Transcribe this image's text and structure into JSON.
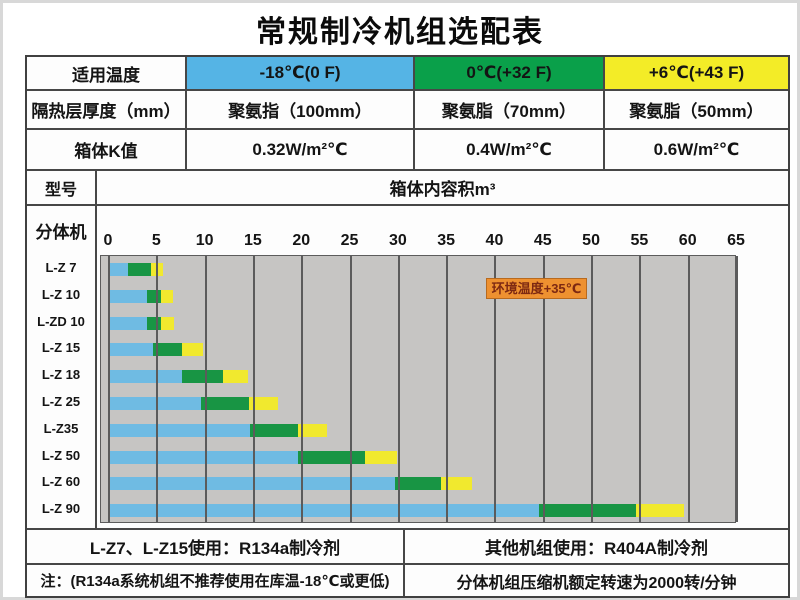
{
  "title": "常规制冷机组选配表",
  "rows": {
    "temperature": {
      "label": "适用温度",
      "cells": [
        {
          "text": "-18℃(0 F)",
          "bg": "#55b4e5"
        },
        {
          "text": "0℃(+32 F)",
          "bg": "#0aa04a"
        },
        {
          "text": "+6℃(+43 F)",
          "bg": "#f3ec27"
        }
      ]
    },
    "insulation": {
      "label": "隔热层厚度（mm）",
      "cells": [
        {
          "text": "聚氨指（100mm）"
        },
        {
          "text": "聚氨脂（70mm）"
        },
        {
          "text": "聚氨脂（50mm）"
        }
      ]
    },
    "k_value": {
      "label": "箱体K值",
      "cells": [
        {
          "text": "0.32W/m²℃"
        },
        {
          "text": "0.4W/m²℃"
        },
        {
          "text": "0.6W/m²℃"
        }
      ]
    },
    "model": {
      "label": "型号",
      "value": "箱体内容积m³"
    },
    "unit_type": {
      "label": "分体机"
    }
  },
  "footer": {
    "refrigerant_left": "L-Z7、L-Z15使用：R134a制冷剂",
    "refrigerant_right": "其他机组使用：R404A制冷剂",
    "note_left": "注：(R134a系统机组不推荐使用在库温-18℃或更低)",
    "note_right": "分体机组压缩机额定转速为2000转/分钟"
  },
  "chart_data": {
    "type": "bar",
    "orientation": "horizontal-stacked",
    "title": "箱体内容积m³",
    "xlabel": "箱体内容积m³",
    "ylabel": "型号",
    "xlim": [
      0,
      65
    ],
    "x_ticks": [
      0,
      5,
      10,
      15,
      20,
      25,
      30,
      35,
      40,
      45,
      50,
      55,
      60,
      65
    ],
    "grid": true,
    "plot_background": "#c6c5c3",
    "categories": [
      "L-Z 7",
      "L-Z 10",
      "L-ZD 10",
      "L-Z 15",
      "L-Z 18",
      "L-Z 25",
      "L-Z35",
      "L-Z 50",
      "L-Z 60",
      "L-Z 90"
    ],
    "series": [
      {
        "name": "-18℃(0 F)",
        "color": "#6fbbe3",
        "cumulative_ends": [
          2.0,
          3.9,
          3.9,
          4.6,
          7.6,
          9.5,
          14.6,
          19.6,
          29.6,
          44.5
        ]
      },
      {
        "name": "0℃(+32 F)",
        "color": "#189544",
        "cumulative_ends": [
          4.3,
          5.4,
          5.4,
          7.6,
          11.8,
          14.5,
          19.6,
          26.5,
          34.4,
          54.5
        ]
      },
      {
        "name": "+6℃(+43 F)",
        "color": "#f1e92e",
        "cumulative_ends": [
          5.6,
          6.6,
          6.7,
          9.7,
          14.4,
          17.5,
          22.6,
          29.8,
          37.6,
          59.5
        ]
      }
    ],
    "annotation": {
      "text": "环境温度+35℃",
      "bg": "#ee9130",
      "color": "#7d2912",
      "x_start": 39,
      "x_end": 49.5
    }
  }
}
